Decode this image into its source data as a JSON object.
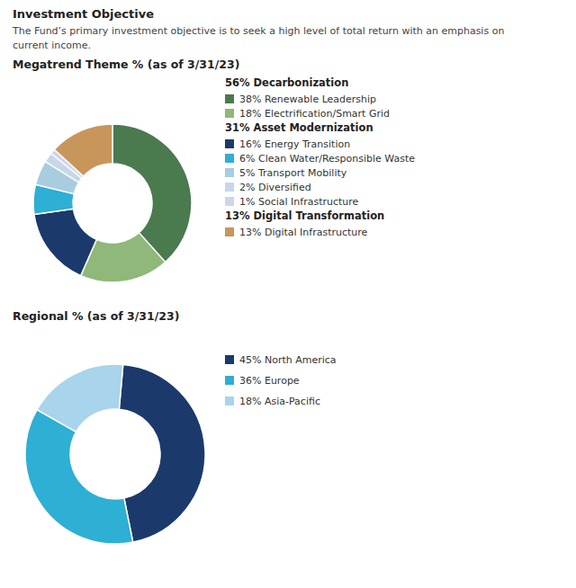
{
  "title": "Investment Objective",
  "subtitle": "The Fund’s primary investment objective is to seek a high level of total return with an emphasis on\ncurrent income.",
  "chart_data": [
    {
      "type": "donut",
      "title": "Megatrend Theme % (as of 3/31/23)",
      "groups": [
        {
          "label": "56% Decarbonization",
          "categories": [
            "38% Renewable Leadership",
            "18% Electrification/Smart Grid"
          ],
          "values": [
            38,
            18
          ],
          "colors": [
            "#4a7a4e",
            "#8fb87a"
          ]
        },
        {
          "label": "31% Asset Modernization",
          "categories": [
            "16% Energy Transition",
            "6% Clean Water/Responsible Waste",
            "5% Transport Mobility",
            "2% Diversified",
            "1% Social Infrastructure"
          ],
          "values": [
            16,
            6,
            5,
            2,
            1
          ],
          "colors": [
            "#1b3a6b",
            "#2eafd4",
            "#a8cde0",
            "#c5d8e8",
            "#ccd5ee"
          ]
        },
        {
          "label": "13% Digital Transformation",
          "categories": [
            "13% Digital Infrastructure"
          ],
          "values": [
            13
          ],
          "colors": [
            "#c8965a"
          ]
        }
      ]
    },
    {
      "type": "donut",
      "title": "Regional % (as of 3/31/23)",
      "categories": [
        "45% North America",
        "36% Europe",
        "18% Asia-Pacific"
      ],
      "values": [
        45,
        36,
        18
      ],
      "colors": [
        "#1b3a6b",
        "#2eafd4",
        "#a8d4ec"
      ]
    }
  ]
}
